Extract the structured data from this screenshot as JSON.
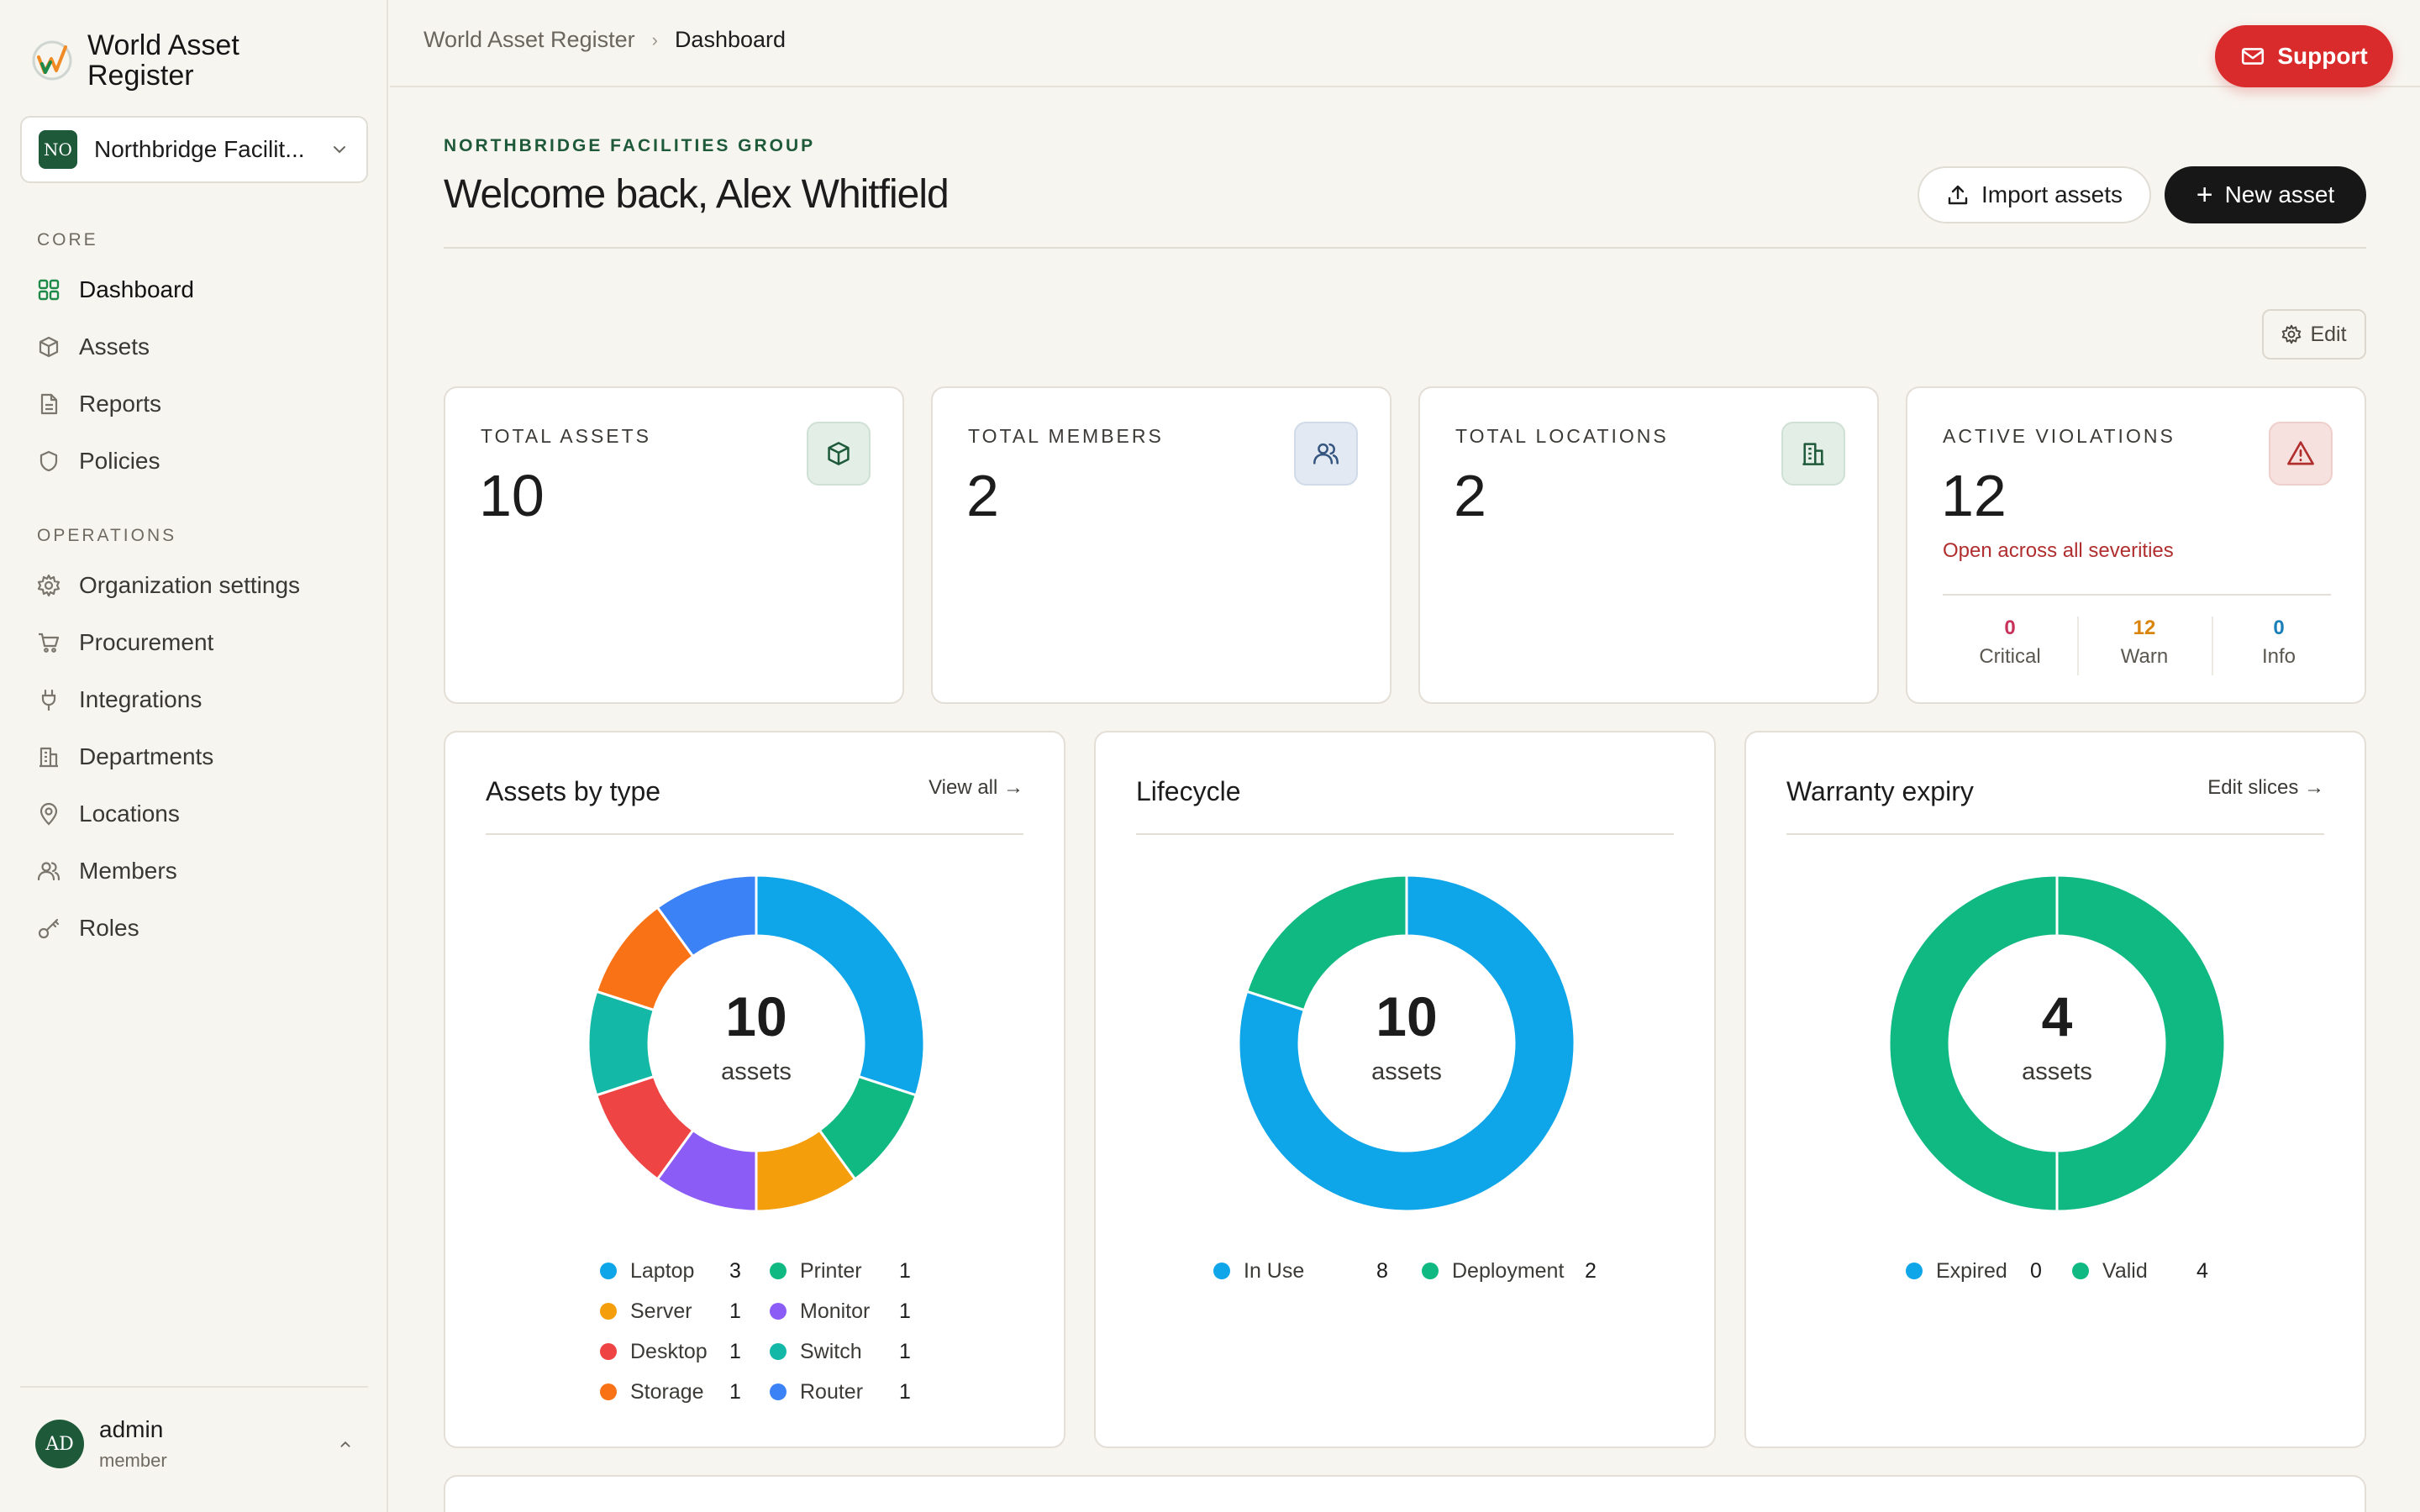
{
  "brand": {
    "name": "World Asset Register"
  },
  "org_switcher": {
    "initials": "NO",
    "name": "Northbridge Facilit..."
  },
  "sidebar": {
    "sections": [
      {
        "title": "CORE",
        "items": [
          {
            "label": "Dashboard",
            "icon": "grid-icon",
            "active": true
          },
          {
            "label": "Assets",
            "icon": "box-icon"
          },
          {
            "label": "Reports",
            "icon": "document-icon"
          },
          {
            "label": "Policies",
            "icon": "shield-icon"
          }
        ]
      },
      {
        "title": "OPERATIONS",
        "items": [
          {
            "label": "Organization settings",
            "icon": "gear-icon"
          },
          {
            "label": "Procurement",
            "icon": "cart-icon"
          },
          {
            "label": "Integrations",
            "icon": "plug-icon"
          },
          {
            "label": "Departments",
            "icon": "building-icon"
          },
          {
            "label": "Locations",
            "icon": "pin-icon"
          },
          {
            "label": "Members",
            "icon": "users-icon"
          },
          {
            "label": "Roles",
            "icon": "key-icon"
          }
        ]
      }
    ]
  },
  "user": {
    "initials": "AD",
    "name": "admin",
    "role": "member"
  },
  "breadcrumb": {
    "root": "World Asset Register",
    "current": "Dashboard"
  },
  "support": {
    "label": "Support"
  },
  "header": {
    "eyebrow": "NORTHBRIDGE FACILITIES GROUP",
    "welcome": "Welcome back, Alex Whitfield",
    "import_label": "Import assets",
    "new_label": "New asset",
    "edit_label": "Edit"
  },
  "stats": [
    {
      "label": "TOTAL ASSETS",
      "value": "10",
      "icon": "box-icon"
    },
    {
      "label": "TOTAL MEMBERS",
      "value": "2",
      "icon": "users-icon"
    },
    {
      "label": "TOTAL LOCATIONS",
      "value": "2",
      "icon": "building-icon"
    },
    {
      "label": "ACTIVE VIOLATIONS",
      "value": "12",
      "icon": "warning-icon",
      "subtitle": "Open across all severities"
    }
  ],
  "violations": [
    {
      "count": "0",
      "label": "Critical",
      "color": "#c8325a"
    },
    {
      "count": "12",
      "label": "Warn",
      "color": "#d9850c"
    },
    {
      "count": "0",
      "label": "Info",
      "color": "#1a7fb8"
    }
  ],
  "colors": {
    "brand_green": "#1e5a3a",
    "support_red": "#d92b2b",
    "laptop": "#0ea5e9",
    "server": "#f59e0b",
    "desktop": "#ef4444",
    "storage": "#f97316",
    "printer": "#10b981",
    "monitor": "#8b5cf6",
    "switch": "#14b8a6",
    "router": "#3b82f6"
  },
  "cards": {
    "assets_by_type": {
      "title": "Assets by type",
      "link": "View all →",
      "center_value": "10",
      "center_label": "assets"
    },
    "lifecycle": {
      "title": "Lifecycle",
      "center_value": "10",
      "center_label": "assets"
    },
    "warranty": {
      "title": "Warranty expiry",
      "link": "Edit slices →",
      "center_value": "4",
      "center_label": "assets"
    }
  },
  "chart_data": [
    {
      "type": "pie",
      "title": "Assets by type",
      "categories": [
        "Laptop",
        "Printer",
        "Server",
        "Monitor",
        "Desktop",
        "Switch",
        "Storage",
        "Router"
      ],
      "values": [
        3,
        1,
        1,
        1,
        1,
        1,
        1,
        1
      ],
      "colors": [
        "#0ea5e9",
        "#10b981",
        "#f59e0b",
        "#8b5cf6",
        "#ef4444",
        "#14b8a6",
        "#f97316",
        "#3b82f6"
      ]
    },
    {
      "type": "pie",
      "title": "Lifecycle",
      "categories": [
        "In Use",
        "Deployment"
      ],
      "values": [
        8,
        2
      ],
      "colors": [
        "#0ea5e9",
        "#10b981"
      ]
    },
    {
      "type": "pie",
      "title": "Warranty expiry",
      "categories": [
        "Expired",
        "Valid"
      ],
      "values": [
        0,
        4
      ],
      "colors": [
        "#0ea5e9",
        "#10b981"
      ]
    }
  ]
}
